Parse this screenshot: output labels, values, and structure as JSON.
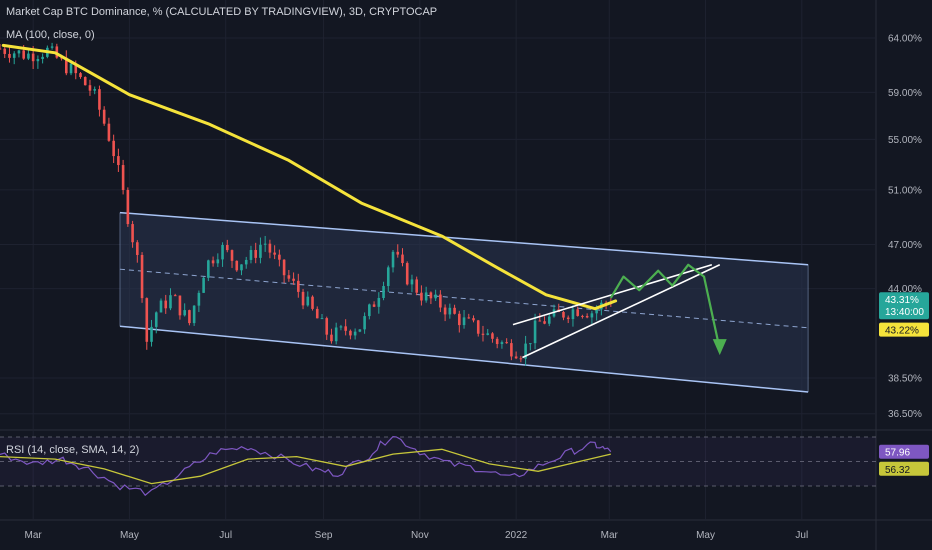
{
  "header": {
    "title": "Market Cap BTC Dominance, % (CALCULATED BY TRADINGVIEW), 3D, CRYPTOCAP",
    "ma_label": "MA (100, close, 0)",
    "rsi_label": "RSI (14, close, SMA, 14, 2)"
  },
  "colors": {
    "background": "#131722",
    "up": "#26a69a",
    "down": "#ef5350",
    "ma": "#f5e33b",
    "channel": "#a9c4f5",
    "channel_fill": "#2a3550",
    "wedge": "#ffffff",
    "projection": "#4caf50",
    "rsi_line": "#7e57c2",
    "rsi_sma": "#c6c63a",
    "price_badge": "#26a69a",
    "ma_badge": "#f5e33b",
    "rsi_badge": "#7e57c2"
  },
  "badges": {
    "price": "43.31%",
    "countdown": "13:40:00",
    "ma": "43.22%",
    "rsi": "57.96",
    "rsi_sma": "56.32"
  },
  "chart_data": {
    "type": "candlestick",
    "title": "Market Cap BTC Dominance, % (CALCULATED BY TRADINGVIEW), 3D, CRYPTOCAP",
    "y_axis": {
      "scale": "log",
      "ticks": [
        "64.00%",
        "59.00%",
        "55.00%",
        "51.00%",
        "47.00%",
        "44.00%",
        "38.50%",
        "36.50%"
      ],
      "tick_values": [
        64,
        59,
        55,
        51,
        47,
        44,
        38.5,
        36.5
      ]
    },
    "x_axis": {
      "ticks": [
        "Mar",
        "May",
        "Jul",
        "Sep",
        "Nov",
        "2022",
        "Mar",
        "May",
        "Jul"
      ],
      "start": "2021-02-08",
      "end": "2022-08-17"
    },
    "series": [
      {
        "name": "MA (100, close, 0)",
        "type": "line",
        "points": [
          [
            "2021-02-10",
            63.3
          ],
          [
            "2021-03-15",
            62.6
          ],
          [
            "2021-05-01",
            58.8
          ],
          [
            "2021-06-20",
            56.3
          ],
          [
            "2021-08-10",
            53.3
          ],
          [
            "2021-09-25",
            50.0
          ],
          [
            "2021-11-15",
            47.6
          ],
          [
            "2021-12-20",
            45.4
          ],
          [
            "2022-01-20",
            43.6
          ],
          [
            "2022-02-20",
            42.7
          ],
          [
            "2022-03-05",
            43.2
          ]
        ]
      }
    ],
    "candles_path": [
      [
        "2021-02-08",
        63.0
      ],
      [
        "2021-02-25",
        62.4
      ],
      [
        "2021-03-10",
        62.8
      ],
      [
        "2021-03-25",
        61.0
      ],
      [
        "2021-04-08",
        59.0
      ],
      [
        "2021-04-20",
        54.5
      ],
      [
        "2021-05-01",
        48.5
      ],
      [
        "2021-05-08",
        45.0
      ],
      [
        "2021-05-12",
        40.7
      ],
      [
        "2021-05-18",
        42.5
      ],
      [
        "2021-05-28",
        43.5
      ],
      [
        "2021-06-08",
        41.8
      ],
      [
        "2021-06-18",
        45.5
      ],
      [
        "2021-06-28",
        46.8
      ],
      [
        "2021-07-08",
        45.7
      ],
      [
        "2021-07-18",
        46.2
      ],
      [
        "2021-07-25",
        47.3
      ],
      [
        "2021-08-05",
        45.2
      ],
      [
        "2021-08-15",
        44.0
      ],
      [
        "2021-08-25",
        42.5
      ],
      [
        "2021-09-05",
        40.9
      ],
      [
        "2021-09-15",
        41.4
      ],
      [
        "2021-09-25",
        41.6
      ],
      [
        "2021-10-05",
        43.5
      ],
      [
        "2021-10-15",
        46.5
      ],
      [
        "2021-10-22",
        45.0
      ],
      [
        "2021-11-02",
        43.6
      ],
      [
        "2021-11-15",
        42.9
      ],
      [
        "2021-11-25",
        42.1
      ],
      [
        "2021-12-08",
        41.4
      ],
      [
        "2021-12-18",
        40.8
      ],
      [
        "2021-12-28",
        40.3
      ],
      [
        "2022-01-05",
        40.0
      ],
      [
        "2022-01-15",
        41.8
      ],
      [
        "2022-01-28",
        42.3
      ],
      [
        "2022-02-08",
        42.7
      ],
      [
        "2022-02-18",
        42.5
      ],
      [
        "2022-03-02",
        43.3
      ]
    ],
    "channel": {
      "upper": [
        [
          "2021-04-25",
          49.3
        ],
        [
          "2022-07-05",
          45.6
        ]
      ],
      "lower": [
        [
          "2021-04-25",
          41.6
        ],
        [
          "2022-07-05",
          37.7
        ]
      ],
      "mid": [
        [
          "2021-04-25",
          45.3
        ],
        [
          "2022-07-05",
          41.5
        ]
      ]
    },
    "wedge": {
      "upper": [
        [
          "2021-12-30",
          41.7
        ],
        [
          "2022-05-05",
          45.6
        ]
      ],
      "lower": [
        [
          "2022-01-05",
          39.7
        ],
        [
          "2022-05-10",
          45.6
        ]
      ]
    },
    "projection": [
      [
        "2022-03-02",
        43.4
      ],
      [
        "2022-03-10",
        44.8
      ],
      [
        "2022-03-20",
        43.9
      ],
      [
        "2022-04-01",
        45.2
      ],
      [
        "2022-04-10",
        44.2
      ],
      [
        "2022-04-20",
        45.6
      ],
      [
        "2022-04-30",
        44.8
      ],
      [
        "2022-05-10",
        40.2
      ]
    ],
    "price_last": 43.31,
    "ma_last": 43.22,
    "rsi": {
      "name": "RSI (14, close, SMA, 14, 2)",
      "ticks": [
        70,
        50,
        30
      ],
      "rsi_last": 57.96,
      "sma_last": 56.32,
      "points": [
        [
          "2021-02-08",
          56
        ],
        [
          "2021-03-01",
          48
        ],
        [
          "2021-03-20",
          52
        ],
        [
          "2021-04-05",
          44
        ],
        [
          "2021-04-25",
          30
        ],
        [
          "2021-05-15",
          24
        ],
        [
          "2021-06-05",
          42
        ],
        [
          "2021-06-25",
          58
        ],
        [
          "2021-07-15",
          62
        ],
        [
          "2021-08-01",
          55
        ],
        [
          "2021-08-25",
          44
        ],
        [
          "2021-09-10",
          40
        ],
        [
          "2021-09-30",
          55
        ],
        [
          "2021-10-15",
          72
        ],
        [
          "2021-11-01",
          58
        ],
        [
          "2021-11-20",
          48
        ],
        [
          "2021-12-10",
          44
        ],
        [
          "2021-12-28",
          36
        ],
        [
          "2022-01-15",
          46
        ],
        [
          "2022-02-05",
          58
        ],
        [
          "2022-02-20",
          64
        ],
        [
          "2022-03-02",
          58
        ]
      ],
      "sma_points": [
        [
          "2021-02-08",
          54
        ],
        [
          "2021-03-15",
          52
        ],
        [
          "2021-04-15",
          44
        ],
        [
          "2021-05-15",
          32
        ],
        [
          "2021-06-15",
          38
        ],
        [
          "2021-07-15",
          52
        ],
        [
          "2021-08-15",
          54
        ],
        [
          "2021-09-15",
          46
        ],
        [
          "2021-10-15",
          56
        ],
        [
          "2021-11-15",
          60
        ],
        [
          "2021-12-15",
          48
        ],
        [
          "2022-01-15",
          42
        ],
        [
          "2022-02-10",
          50
        ],
        [
          "2022-03-02",
          56
        ]
      ]
    }
  }
}
